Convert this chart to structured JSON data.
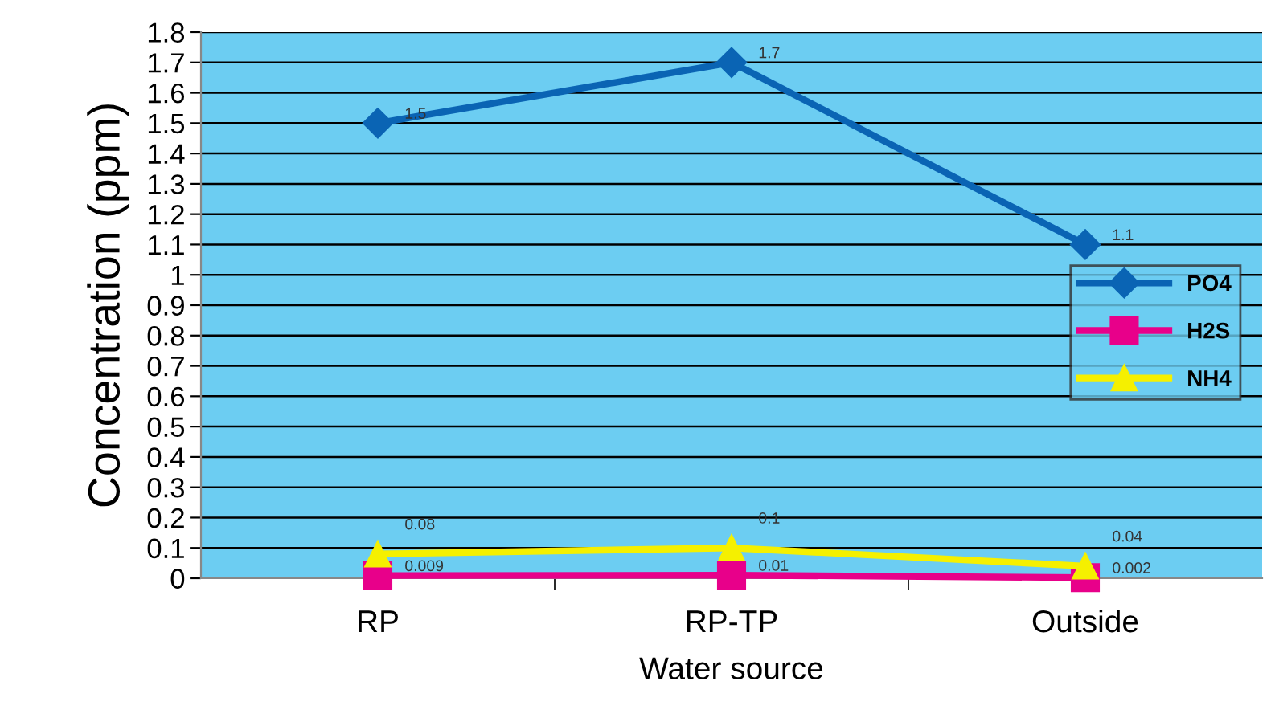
{
  "chart_data": {
    "type": "line",
    "xlabel": "Water source",
    "ylabel": "Concentration (ppm)",
    "categories": [
      "RP",
      "RP-TP",
      "Outside"
    ],
    "series": [
      {
        "name": "PO4",
        "color": "#0a64b4",
        "marker": "diamond",
        "values": [
          1.5,
          1.7,
          1.1
        ]
      },
      {
        "name": "H2S",
        "color": "#e8008a",
        "marker": "square",
        "values": [
          0.009,
          0.01,
          0.002
        ]
      },
      {
        "name": "NH4",
        "color": "#f5f000",
        "marker": "triangle",
        "values": [
          0.08,
          0.1,
          0.04
        ]
      }
    ],
    "ylim": [
      0,
      1.8
    ],
    "yticks": [
      0,
      0.1,
      0.2,
      0.3,
      0.4,
      0.5,
      0.6,
      0.7,
      0.8,
      0.9,
      1,
      1.1,
      1.2,
      1.3,
      1.4,
      1.5,
      1.6,
      1.7,
      1.8
    ],
    "grid": "y",
    "legend": "right",
    "data_labels": true,
    "line_style": "solid"
  }
}
